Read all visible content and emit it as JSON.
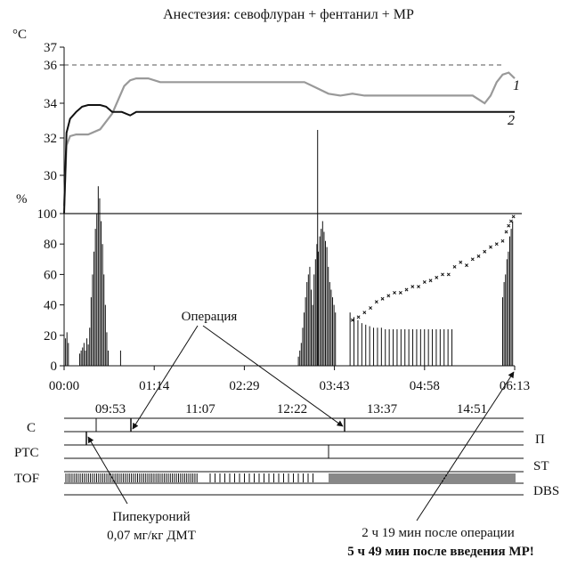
{
  "chart_data": {
    "type": "line",
    "title": "Анестезия: севофлуран + фентанил + МР",
    "temperature_panel": {
      "unit": "°C",
      "y_ticks": [
        30,
        32,
        34,
        36,
        37
      ],
      "ylim": [
        29,
        37
      ],
      "reference_line": 36,
      "series": [
        {
          "name": "1",
          "color": "#999999",
          "x_min": [
            0,
            2,
            5,
            10,
            20,
            30,
            40,
            50,
            55,
            60,
            70,
            80,
            90,
            100,
            120,
            150,
            180,
            200,
            210,
            220,
            230,
            240,
            250,
            260,
            280,
            300,
            320,
            340,
            350,
            355,
            360,
            365,
            370,
            375
          ],
          "y": [
            29.2,
            31.6,
            32.1,
            32.2,
            32.2,
            32.5,
            33.4,
            34.9,
            35.2,
            35.3,
            35.3,
            35.1,
            35.1,
            35.1,
            35.1,
            35.1,
            35.1,
            35.1,
            34.8,
            34.5,
            34.4,
            34.5,
            34.4,
            34.4,
            34.4,
            34.4,
            34.4,
            34.4,
            34.0,
            34.4,
            35.1,
            35.5,
            35.6,
            35.3
          ]
        },
        {
          "name": "2",
          "color": "#111111",
          "x_min": [
            0,
            2,
            5,
            10,
            15,
            20,
            25,
            30,
            35,
            40,
            48,
            55,
            60,
            100,
            200,
            300,
            375
          ],
          "y": [
            29.0,
            32.3,
            33.1,
            33.5,
            33.8,
            33.9,
            33.9,
            33.9,
            33.8,
            33.5,
            33.5,
            33.3,
            33.5,
            33.5,
            33.5,
            33.5,
            33.5
          ]
        }
      ]
    },
    "percent_panel": {
      "unit": "%",
      "y_ticks": [
        0,
        20,
        40,
        60,
        80,
        100
      ],
      "ylim": [
        0,
        100
      ],
      "reference_line": 100,
      "bar_clusters": [
        {
          "x_min": 0,
          "values": [
            20,
            18,
            22,
            15
          ]
        },
        {
          "x_min": 13,
          "values": [
            8,
            10,
            12,
            15,
            10,
            18,
            14,
            25,
            45,
            60,
            75,
            90,
            100,
            118,
            110,
            95,
            80,
            60,
            40,
            22,
            10
          ]
        },
        {
          "x_min": 47,
          "values": [
            10
          ]
        },
        {
          "x_min": 195,
          "values": [
            6,
            10,
            15,
            25,
            35,
            45,
            55,
            60,
            65,
            50,
            40,
            60,
            70,
            80,
            75,
            85,
            90,
            95,
            88,
            82,
            78,
            65,
            55,
            50,
            45,
            40,
            35
          ]
        },
        {
          "x_min": 211,
          "values": [
            155
          ]
        },
        {
          "x_min": 238,
          "values": [
            35,
            32,
            30,
            28,
            27,
            26,
            25,
            25,
            25,
            24,
            24,
            24,
            24,
            24,
            24,
            24,
            24,
            24,
            24,
            24,
            24,
            24,
            24,
            24,
            24,
            24,
            24
          ]
        },
        {
          "x_min": 365,
          "values": [
            45,
            55,
            60,
            70,
            75,
            85,
            90,
            95
          ]
        }
      ],
      "tof_ratio_points": {
        "x_min": [
          240,
          245,
          250,
          255,
          260,
          265,
          270,
          275,
          280,
          285,
          290,
          295,
          300,
          305,
          310,
          315,
          320,
          325,
          330,
          335,
          340,
          345,
          350,
          355,
          360,
          365,
          368,
          370,
          372,
          374
        ],
        "y": [
          30,
          32,
          35,
          38,
          42,
          44,
          46,
          48,
          48,
          50,
          52,
          52,
          55,
          56,
          58,
          60,
          60,
          65,
          68,
          66,
          70,
          72,
          75,
          78,
          80,
          82,
          88,
          92,
          95,
          98
        ]
      },
      "x_ticks": [
        "00:00",
        "01:14",
        "02:29",
        "03:43",
        "04:58",
        "06:13"
      ]
    },
    "timeline": {
      "clock_ticks": [
        "09:53",
        "11:07",
        "12:22",
        "13:37",
        "14:51"
      ],
      "left_labels": [
        "С",
        "PTC",
        "TOF"
      ],
      "right_labels": [
        "П",
        "ST",
        "DBS"
      ]
    },
    "annotations": {
      "operation": "Операция",
      "drug_line1": "Пипекуроний",
      "drug_line2": "0,07 мг/кг ДМТ",
      "note_line1": "2 ч 19 мин после операции",
      "note_line2": "5 ч 49 мин после введения МР!"
    },
    "colors": {
      "temp_series_1": "#999999",
      "temp_series_2": "#111111",
      "bars": "#111111",
      "reference": "#555555"
    }
  }
}
